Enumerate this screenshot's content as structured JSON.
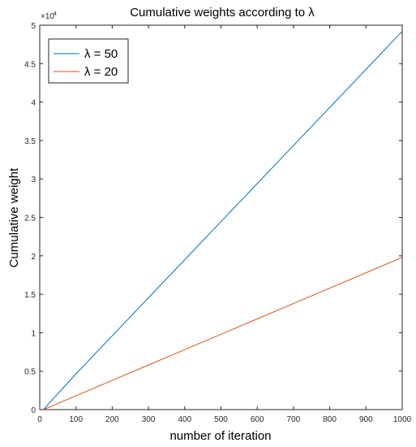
{
  "chart_data": {
    "type": "line",
    "title": "Cumulative weights according to λ",
    "xlabel": "number of iteration",
    "ylabel": "Cumulative weight",
    "y_exponent_label": "×10",
    "y_exponent_power": "4",
    "xlim": [
      0,
      1000
    ],
    "ylim": [
      0,
      50000
    ],
    "x_ticks": [
      0,
      100,
      200,
      300,
      400,
      500,
      600,
      700,
      800,
      900,
      1000
    ],
    "x_tick_labels": [
      "0",
      "100",
      "200",
      "300",
      "400",
      "500",
      "600",
      "700",
      "800",
      "900",
      "1000"
    ],
    "y_ticks": [
      0,
      5000,
      10000,
      15000,
      20000,
      25000,
      30000,
      35000,
      40000,
      45000,
      50000
    ],
    "y_tick_labels": [
      "0",
      "0.5",
      "1",
      "1.5",
      "2",
      "2.5",
      "3",
      "3.5",
      "4",
      "4.5",
      "5"
    ],
    "grid": false,
    "legend_position": "top-left",
    "series": [
      {
        "name": "λ = 50",
        "color": "#0072BD",
        "x": [
          10,
          100,
          200,
          300,
          400,
          500,
          600,
          700,
          800,
          900,
          1000
        ],
        "y": [
          0,
          4650,
          9600,
          14550,
          19500,
          24450,
          29400,
          34350,
          39300,
          44250,
          49200
        ]
      },
      {
        "name": "λ = 20",
        "color": "#D95319",
        "x": [
          10,
          100,
          200,
          300,
          400,
          500,
          600,
          700,
          800,
          900,
          1000
        ],
        "y": [
          0,
          1800,
          3800,
          5800,
          7800,
          9800,
          11800,
          13800,
          15800,
          17800,
          19800
        ]
      }
    ]
  }
}
